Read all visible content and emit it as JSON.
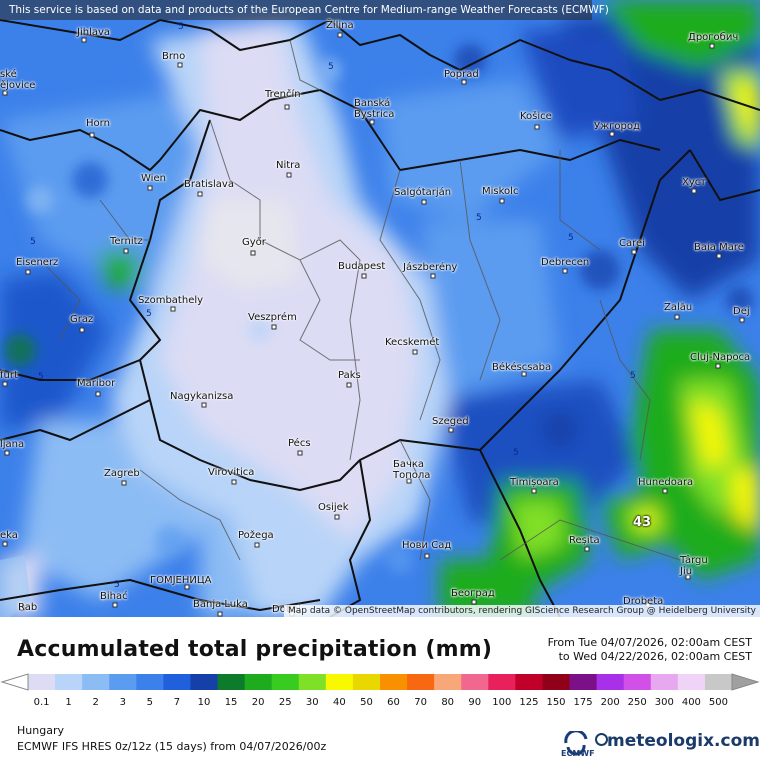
{
  "banner": "This service is based on data and products of the European Centre for Medium-range Weather Forecasts (ECMWF)",
  "cities": [
    {
      "name": "Jihlava"
    },
    {
      "name": "Brno"
    },
    {
      "name": "ské\nějovice"
    },
    {
      "name": "Horn"
    },
    {
      "name": "Wien"
    },
    {
      "name": "Bratislava"
    },
    {
      "name": "Žilina"
    },
    {
      "name": "Poprad"
    },
    {
      "name": "Trenčín"
    },
    {
      "name": "Banská\nBystrica"
    },
    {
      "name": "Košice"
    },
    {
      "name": "Ужгород"
    },
    {
      "name": "Дрогобич"
    },
    {
      "name": "Nitra"
    },
    {
      "name": "Salgótarján"
    },
    {
      "name": "Miskolc"
    },
    {
      "name": "Хуст"
    },
    {
      "name": "Ternitz"
    },
    {
      "name": "Győr"
    },
    {
      "name": "Budapest"
    },
    {
      "name": "Jászberény"
    },
    {
      "name": "Debrecen"
    },
    {
      "name": "Carei"
    },
    {
      "name": "Baia Mare"
    },
    {
      "name": "Eisenerz"
    },
    {
      "name": "Szombathely"
    },
    {
      "name": "Graz"
    },
    {
      "name": "Veszprém"
    },
    {
      "name": "Zalău"
    },
    {
      "name": "Dej"
    },
    {
      "name": "Kecskemét"
    },
    {
      "name": "Cluj-Napoca"
    },
    {
      "name": "furt"
    },
    {
      "name": "Maribor"
    },
    {
      "name": "Paks"
    },
    {
      "name": "Békéscsaba"
    },
    {
      "name": "Nagykanizsa"
    },
    {
      "name": "Szeged"
    },
    {
      "name": "Pécs"
    },
    {
      "name": "ljana"
    },
    {
      "name": "Zagreb"
    },
    {
      "name": "Virovitica"
    },
    {
      "name": "Бачка\nТопола"
    },
    {
      "name": "Timișoara"
    },
    {
      "name": "Hunedoara"
    },
    {
      "name": "Osijek"
    },
    {
      "name": "Požega"
    },
    {
      "name": "Нови Сад"
    },
    {
      "name": "Reșita"
    },
    {
      "name": "Târgu\nJiu"
    },
    {
      "name": "ГОМЈЕНИЦА"
    },
    {
      "name": "Bihać"
    },
    {
      "name": "Banja Luka"
    },
    {
      "name": "Doboj"
    },
    {
      "name": "Београд"
    },
    {
      "name": "Drobeta"
    },
    {
      "name": "eka"
    },
    {
      "name": "Rab"
    }
  ],
  "contour_label": "5",
  "max_label": "43",
  "attribution": "Map data © OpenStreetMap contributors, rendering GIScience Research Group @ Heidelberg University",
  "title": "Accumulated total precipitation (mm)",
  "period_from": "From Tue 04/07/2026, 02:00am CEST",
  "period_to": "to Wed 04/22/2026, 02:00am CEST",
  "scale": {
    "labels": [
      "0.1",
      "1",
      "2",
      "3",
      "5",
      "7",
      "10",
      "15",
      "20",
      "25",
      "30",
      "40",
      "50",
      "60",
      "70",
      "80",
      "90",
      "100",
      "125",
      "150",
      "175",
      "200",
      "250",
      "300",
      "400",
      "500"
    ],
    "colors": [
      "#dcdcf4",
      "#b8d4f8",
      "#8cbcf4",
      "#5c9cf0",
      "#3c80ea",
      "#2060dc",
      "#1440a8",
      "#0c7c2c",
      "#1eac1e",
      "#38cc20",
      "#80e028",
      "#f8f800",
      "#e8d800",
      "#f89000",
      "#f86810",
      "#f8a878",
      "#f06890",
      "#e8205c",
      "#c00028",
      "#900018",
      "#7c1088",
      "#a830e8",
      "#d050e8",
      "#e8a8f0",
      "#f0d4f8",
      "#c8c8c8"
    ]
  },
  "region": "Hungary",
  "model": "ECMWF IFS HRES 0z/12z (15 days) from  04/07/2026/00z",
  "logos": {
    "ecmwf": "ECMWF",
    "meteologix": "meteologix.com"
  }
}
